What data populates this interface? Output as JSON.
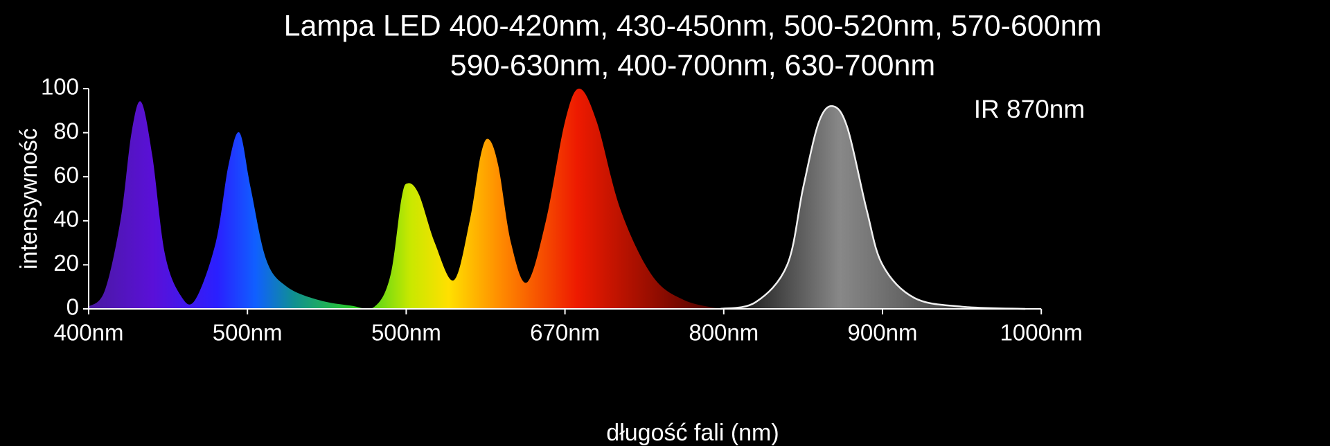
{
  "chart_data": {
    "type": "area",
    "title": [
      "Lampa LED 400-420nm, 430-450nm, 500-520nm, 570-600nm",
      "590-630nm, 400-700nm, 630-700nm"
    ],
    "annotation": "IR 870nm",
    "x_label": "długość fali (nm)",
    "y_label": "intensywność",
    "categories": [
      "400nm",
      "500nm",
      "500nm",
      "670nm",
      "800nm",
      "900nm",
      "1000nm"
    ],
    "ylim": [
      0,
      100
    ],
    "yticks": [
      0,
      20,
      40,
      60,
      80,
      100
    ],
    "series": [
      {
        "name": "LED",
        "color": "spectrum",
        "x": [
          0,
          0.1,
          0.2,
          0.27,
          0.33,
          0.4,
          0.48,
          0.58,
          0.67,
          0.8,
          0.88,
          0.95,
          1.02,
          1.12,
          1.25,
          1.45,
          1.65,
          1.8,
          1.9,
          1.97,
          2.01,
          2.08,
          2.18,
          2.3,
          2.4,
          2.47,
          2.52,
          2.58,
          2.66,
          2.76,
          2.88,
          3.0,
          3.09,
          3.2,
          3.35,
          3.55,
          3.75,
          3.98
        ],
        "values": [
          1,
          8,
          40,
          80,
          94,
          70,
          25,
          6,
          4,
          30,
          65,
          80,
          55,
          22,
          10,
          4,
          1.5,
          1,
          15,
          50,
          57,
          52,
          30,
          13,
          40,
          70,
          77,
          65,
          30,
          12,
          40,
          85,
          100,
          85,
          45,
          15,
          4,
          0
        ]
      },
      {
        "name": "IR",
        "color": "#9a9a9a",
        "x": [
          3.98,
          4.2,
          4.4,
          4.5,
          4.6,
          4.69,
          4.78,
          4.9,
          5.0,
          5.2,
          5.5,
          5.9
        ],
        "values": [
          0,
          3,
          20,
          55,
          85,
          92,
          82,
          45,
          20,
          5,
          1,
          0
        ]
      }
    ]
  }
}
